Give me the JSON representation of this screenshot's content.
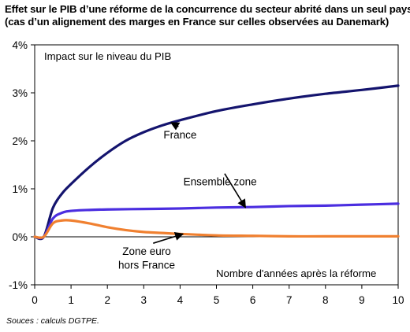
{
  "chart_data": {
    "type": "line",
    "title": "Effet sur le PIB d’une réforme de la concurrence du secteur abrité dans un seul pays",
    "subtitle": "(cas d’un alignement des marges en France sur celles observées au Danemark)",
    "inner_title": "Impact sur le niveau du PIB",
    "xlabel": "Nombre d'années après la réforme",
    "ylabel": "",
    "xlim": [
      0,
      10
    ],
    "ylim": [
      -1,
      4
    ],
    "x_ticks": [
      0,
      1,
      2,
      3,
      4,
      5,
      6,
      7,
      8,
      9,
      10
    ],
    "y_ticks": [
      {
        "value": -1,
        "label": "-1%"
      },
      {
        "value": 0,
        "label": "0%"
      },
      {
        "value": 1,
        "label": "1%"
      },
      {
        "value": 2,
        "label": "2%"
      },
      {
        "value": 3,
        "label": "3%"
      },
      {
        "value": 4,
        "label": "4%"
      }
    ],
    "grid": false,
    "series": [
      {
        "name": "France",
        "color": "#14146e",
        "points": [
          [
            0,
            0
          ],
          [
            0.25,
            0
          ],
          [
            0.5,
            0.6
          ],
          [
            0.75,
            0.9
          ],
          [
            1,
            1.1
          ],
          [
            1.5,
            1.45
          ],
          [
            2,
            1.75
          ],
          [
            2.5,
            2.0
          ],
          [
            3,
            2.18
          ],
          [
            3.5,
            2.32
          ],
          [
            4,
            2.43
          ],
          [
            5,
            2.62
          ],
          [
            6,
            2.76
          ],
          [
            7,
            2.88
          ],
          [
            8,
            2.98
          ],
          [
            9,
            3.06
          ],
          [
            10,
            3.15
          ]
        ]
      },
      {
        "name": "Ensemble zone",
        "color": "#4b2ee0",
        "points": [
          [
            0,
            0
          ],
          [
            0.25,
            0
          ],
          [
            0.5,
            0.38
          ],
          [
            0.75,
            0.5
          ],
          [
            1,
            0.54
          ],
          [
            1.5,
            0.56
          ],
          [
            2,
            0.57
          ],
          [
            3,
            0.58
          ],
          [
            4,
            0.59
          ],
          [
            5,
            0.61
          ],
          [
            6,
            0.62
          ],
          [
            7,
            0.64
          ],
          [
            8,
            0.65
          ],
          [
            9,
            0.67
          ],
          [
            10,
            0.69
          ]
        ]
      },
      {
        "name": "Zone euro hors France",
        "color": "#f08030",
        "points": [
          [
            0,
            0
          ],
          [
            0.25,
            0
          ],
          [
            0.5,
            0.28
          ],
          [
            0.75,
            0.34
          ],
          [
            1,
            0.34
          ],
          [
            1.5,
            0.28
          ],
          [
            2,
            0.2
          ],
          [
            2.5,
            0.14
          ],
          [
            3,
            0.1
          ],
          [
            3.5,
            0.08
          ],
          [
            4,
            0.06
          ],
          [
            5,
            0.03
          ],
          [
            6,
            0.02
          ],
          [
            7,
            0.01
          ],
          [
            8,
            0.01
          ],
          [
            9,
            0.01
          ],
          [
            10,
            0.01
          ]
        ]
      }
    ],
    "annotations": [
      {
        "id": "france",
        "text": "France",
        "arrow_to": [
          3.75,
          2.38
        ],
        "text_at": [
          4.0,
          2.05
        ]
      },
      {
        "id": "ensemble",
        "text": "Ensemble zone",
        "arrow_to": [
          5.8,
          0.61
        ],
        "text_at": [
          5.1,
          1.07
        ]
      },
      {
        "id": "hors-france-1",
        "text": "Zone euro",
        "arrow_to": [
          4.08,
          0.06
        ],
        "text_at": [
          3.08,
          -0.38
        ]
      },
      {
        "id": "hors-france-2",
        "text": "hors France",
        "text_at": [
          3.08,
          -0.66
        ]
      }
    ],
    "source": "Souces : calculs DGTPE."
  }
}
